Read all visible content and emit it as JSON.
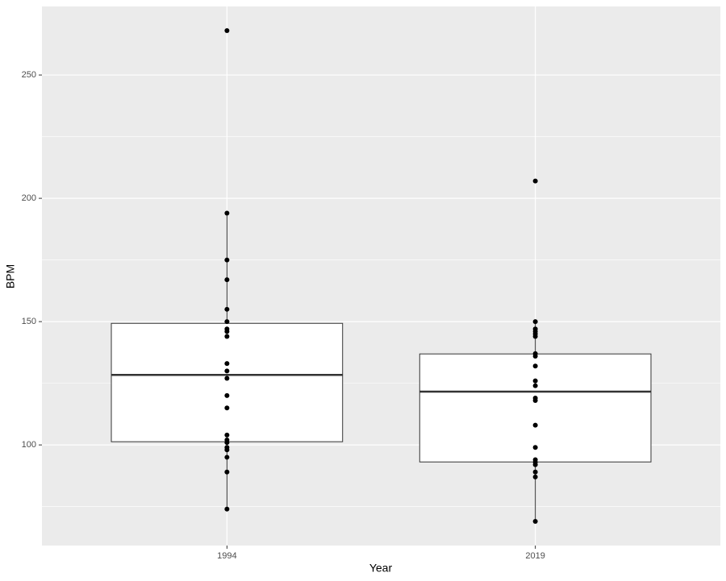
{
  "chart_data": {
    "type": "box",
    "x_label": "Year",
    "y_label": "BPM",
    "categories": [
      "1994",
      "2019"
    ],
    "boxes": [
      {
        "whisker_low": 74.2,
        "q1": 101.3,
        "median": 128.4,
        "q3": 149.3,
        "whisker_high": 194.1,
        "points": [
          268,
          194,
          175,
          167,
          155,
          150,
          147,
          146,
          144,
          133,
          130,
          127,
          120,
          115,
          104,
          102,
          101,
          99,
          98,
          95,
          89,
          74
        ]
      },
      {
        "whisker_low": 69,
        "q1": 93.1,
        "median": 121.6,
        "q3": 136.9,
        "whisker_high": 150,
        "points": [
          207,
          150,
          147,
          146,
          145,
          144,
          137,
          136,
          132,
          126,
          124,
          119,
          118,
          108,
          99,
          94,
          93,
          92,
          89,
          87,
          69
        ]
      }
    ],
    "ylim": [
      59.2,
      277.8
    ],
    "yticks": [
      100,
      150,
      200,
      250
    ],
    "minor_grid": [
      75,
      125,
      175,
      225
    ],
    "grid": true,
    "box_fill": "#ffffff",
    "line_color": "#333333",
    "point_color": "#000000",
    "panel_color": "#ebebeb"
  }
}
